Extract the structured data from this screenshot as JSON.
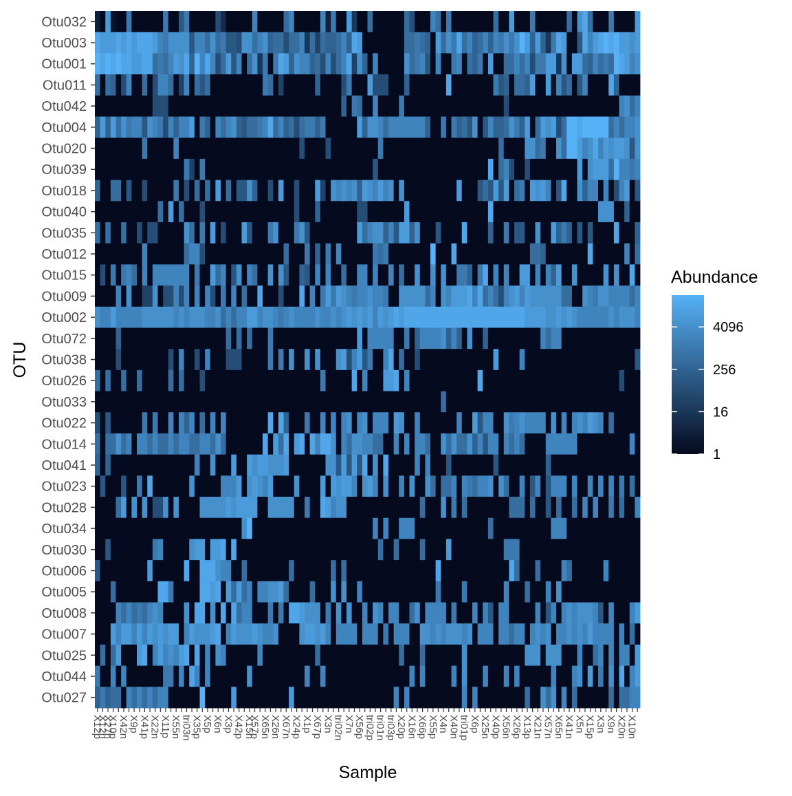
{
  "chart_data": {
    "type": "heatmap",
    "xlabel": "Sample",
    "ylabel": "OTU",
    "legend": {
      "title": "Abundance",
      "placement": "right",
      "scale": "log2",
      "min": 1,
      "max": 32768,
      "ticks": [
        1,
        16,
        256,
        4096
      ],
      "tick_labels": [
        "1",
        "16",
        "256",
        "4096"
      ],
      "color_low": "#050a1e",
      "color_high": "#56b1f7"
    },
    "panel_background": "#000000",
    "grid": false,
    "rows": [
      "Otu032",
      "Otu003",
      "Otu001",
      "Otu011",
      "Otu042",
      "Otu004",
      "Otu020",
      "Otu039",
      "Otu018",
      "Otu040",
      "Otu035",
      "Otu012",
      "Otu015",
      "Otu009",
      "Otu002",
      "Otu072",
      "Otu038",
      "Otu026",
      "Otu033",
      "Otu022",
      "Otu014",
      "Otu041",
      "Otu023",
      "Otu028",
      "Otu034",
      "Otu030",
      "Otu006",
      "Otu005",
      "Otu008",
      "Otu007",
      "Otu025",
      "Otu044",
      "Otu027"
    ],
    "columns": [
      "X12p",
      "X12n",
      "X27n",
      "X10p",
      "X42n",
      "X9p",
      "X41p",
      "X22n",
      "X11p",
      "X55n",
      "tri03n",
      "X35p",
      "X5p",
      "X6n",
      "X3p",
      "X42p",
      "X15n",
      "X57p",
      "X65n",
      "X26n",
      "X67n",
      "X24p",
      "X1p",
      "X67p",
      "X3n",
      "tri02n",
      "X7n",
      "X56p",
      "tri02p",
      "tri01n",
      "tri03p",
      "X20p",
      "X16n",
      "X66p",
      "X55p",
      "X4n",
      "X40n",
      "tri01p",
      "X6p",
      "X25n",
      "X40p",
      "X56n",
      "X26p",
      "X13p",
      "X21n",
      "X57n",
      "X65n",
      "X41n",
      "X5n",
      "X15p",
      "X3n",
      "X9n",
      "X20n",
      "X10n"
    ],
    "column_labels": [
      {
        "index": 0,
        "label": "X12p"
      },
      {
        "index": 1,
        "label": "X12n"
      },
      {
        "index": 2,
        "label": "X27n"
      },
      {
        "index": 3,
        "label": "X10p"
      },
      {
        "index": 5,
        "label": "X42n"
      },
      {
        "index": 7,
        "label": "X9p"
      },
      {
        "index": 9,
        "label": "X41p"
      },
      {
        "index": 11,
        "label": "X22n"
      },
      {
        "index": 13,
        "label": "X11p"
      },
      {
        "index": 15,
        "label": "X55n"
      },
      {
        "index": 17,
        "label": "tri03n"
      },
      {
        "index": 19,
        "label": "X35p"
      },
      {
        "index": 21,
        "label": "X5p"
      },
      {
        "index": 23,
        "label": "X6n"
      },
      {
        "index": 25,
        "label": "X3p"
      },
      {
        "index": 27,
        "label": "X42p"
      },
      {
        "index": 29,
        "label": "X15n"
      },
      {
        "index": 30,
        "label": "X57p"
      },
      {
        "index": 32,
        "label": "X65n"
      },
      {
        "index": 34,
        "label": "X26n"
      },
      {
        "index": 36,
        "label": "X67n"
      },
      {
        "index": 38,
        "label": "X24p"
      },
      {
        "index": 40,
        "label": "X1p"
      },
      {
        "index": 42,
        "label": "X67p"
      },
      {
        "index": 44,
        "label": "X3n"
      },
      {
        "index": 46,
        "label": "tri02n"
      },
      {
        "index": 48,
        "label": "X7n"
      },
      {
        "index": 50,
        "label": "X56p"
      },
      {
        "index": 52,
        "label": "tri02p"
      },
      {
        "index": 54,
        "label": "tri01n"
      },
      {
        "index": 56,
        "label": "tri03p"
      },
      {
        "index": 58,
        "label": "X20p"
      },
      {
        "index": 60,
        "label": "X16n"
      },
      {
        "index": 62,
        "label": "X66p"
      },
      {
        "index": 64,
        "label": "X55p"
      },
      {
        "index": 66,
        "label": "X4n"
      },
      {
        "index": 68,
        "label": "X40n"
      },
      {
        "index": 70,
        "label": "tri01p"
      },
      {
        "index": 72,
        "label": "X6p"
      },
      {
        "index": 74,
        "label": "X25n"
      },
      {
        "index": 76,
        "label": "X40p"
      },
      {
        "index": 78,
        "label": "X56n"
      },
      {
        "index": 80,
        "label": "X26p"
      },
      {
        "index": 82,
        "label": "X13p"
      },
      {
        "index": 84,
        "label": "X21n"
      },
      {
        "index": 86,
        "label": "X57n"
      },
      {
        "index": 88,
        "label": "X65n"
      },
      {
        "index": 90,
        "label": "X41n"
      },
      {
        "index": 92,
        "label": "X5n"
      },
      {
        "index": 94,
        "label": "X15p"
      },
      {
        "index": 96,
        "label": "X3n"
      },
      {
        "index": 98,
        "label": "X9n"
      },
      {
        "index": 100,
        "label": "X20n"
      },
      {
        "index": 102,
        "label": "X10n"
      }
    ],
    "n_columns": 104,
    "values_log2": [
      "20d100a000000a007a000006300000b000009b00000b2a00d400900000096000b90a00000000900d000a00000090ce9000a0000d6000b0000",
      "edddededeeedbacccc7bb9c9a776cc9bc899699b4959889b8ed0000000099a980d9cae9b89b8bacacfd8d84aed007ebdefefddcdcddcdeeedfff",
      "fefefeeddee9a9bdce8fbeb69d7b09c4a0aed8cbb896b69be5c80b00000c9ab70b00ab098a0d0099b9b6aadd4c0dd98b9a9fedbcacbadbdeeefffe",
      "909806b00906bb905b09790000000000a905000000800006a000d66600080000000e00000000a780998d00d1b7907b0000e8000000000000000",
      "0000000000066600000000000000000000000000000000080a900b0000a00000000000000000006000000000000000000000bc9b000900706000",
      "8d8d9cabb7cba6b8bbd0a80b9bc8799abe9b8969aa8a000000d8ccb9bbbbbbb800a0a897c07b889ca8d09dcd69ffefffff9b9bbcdbcdbcdbdcce",
      "000000000a00000b00000000000000000000000600006000000000a000000000000000000000090000cc9a00c9ffdbcebdcddc7c00b7dcbe06c9",
      "00000000000000000a50a000000000000000000000000000000007000000000000000000000e09b6006000000000d0cddd9fbbabbc9b9070cdcb",
      "800990700600000a0609090d09077c80060d006000d50cbcbc8dcbdbc0c0000000000d000797d7d09a0dcdb07e00c8bb0b06bd0700c00bcc80707",
      "00000000000090d09000600000000000000000600080000000660000000d000000000000000e00000000000000000000ccc008000000000008ca",
      "90900900606600000c90a0d06000d7000ac000ac7000000000d9bcc8b7dd8c00070000e0000800a07700c00d8a807070000e000800000000000008",
      "000000000b00000009bb60000000000000009000a080a0b000000a9a00000000f000e0000000000000099800000000e000000b09b000000000000",
      "060a0ab90b0bbbbbbb0a00d9b07c0b900c0c700870b0b00900bb0b00b0900c00c0c00aa80ae0b0b00dd0b0b8d00c00000c0c00e0b9000c0d8000",
      "0000b0c0055c066b6b0b0b60a0b0900e0006000e0b0adadcbabbcbba00ccccc9b0cbdddebe9b96bcdbdcccccc9900cbaccbbbb9b9b9b90cbd9a",
      "cbbdbbbbbccccccbcbcccbbc9b9bbddbccbabcbbbbcbbcbcdcdcdbdcdedeeeeeeeeeeeeeeeeeeeeeeeddddccdcdcbbbbbbcbcccbbbbbbcbbbbbb",
      "000080000000000000000000090909000a0000000000000000d0bbbbb00a08bbbbc8b80c0080000000000b9bb0000000000000000000000800700",
      "0000600000000060b0060b00066600000a0a0c00c0c000cd6bd7a00be0900600000000000000d0000b000000000000000000000700000000000",
      "9090090090000090900060000000000000000000000a00000e0b000dde0b0000000000000e000000000000000000000000006000000000000",
      "0000000000000000000000000000000000000000000000000000000000000000009000000000000000000000000000000000000000000",
      "607000000a0a00b0b8b090b0b00000000e0e8000a00b0b0bc0bc0bbb0dc00b0000000b00d7bb00cabcbbbb0c0b0bcbdcb090000080000000",
      "9099c9b0bb9b99b9bb99bb9c90000000e0d9e0de0ebeec0b9ccbb9900b0b0bb900c9c99c8b7bb0b9b90000bbbbbb0000000000b0000b09990",
      "8080000000000000000b00c000d00dcddcccd0000000cc7d7d7e0c0e00000b0b000700000000700000000080000000000000000000070",
      "07000700a0e0000000c00000bbbd0cdcbd0000c0000d0dcddb0cdb0c00b0c00c9099b0ba9bbc0c900b07b07bbb0b00b0b0b0a090000c0",
      "00009d0c0c066c0c0000cccccdcdddd00ccccc00a00edbcc000000000000009000c0a090000000099909007090090b0b00a0900bc",
      "0000000000000000000000000000cf00000000000000000000000b0b00bbb00000000000000900000000000bbb0000000000000000000000",
      "00700000000ab00000cdd0dde0e0000000000000000000000000009009000090000d0000000000aaa000000000000000000000000000",
      "7000000000d000000e00eeecbb009000000009000000090900000000000000000e0000000000000e900090000b9000000b000000000000",
      "000900000000eea00000eede0d9d9b0bbccd900009000c0c00b00000000000000a0000a0000000b0009000b0c0000000000000000000",
      "0000b9b9a9bcb0000c0ee0c0e0e9bb000a0a0eedccc0a0c0c00b0cb0bb009c0bbbb0a000b0b70bb00000b07b0bcbcccb70b000bd070",
      "000dbddbdbdcdcdd0bdcccde0bdcccdcbbc0000cddcdb0bbbb0bbb0a0bbb00ccbcbcccbc0bbb0bb9bb0bcbc0bbcbcbdbbbb0b090cdcdcc",
      "0909d000de0bdbcbde0e0b0cb000000b00000000009000000000000000900090000000c00000000000ccc0ccc000b009b0b0bb0d0bc",
      "a00b0b0000000aa0b0eb0b0000000c0000000000b00b0000000000000000b0b00000b0c000b000b0b000000b000bc0d0a0c0e0bd",
      "8a8990b9b9b9bb000000f00000d0000000000d0000000000000000000b0b0000000000b0b000000000900c9c0b090000009099bbb0a0"
    ]
  }
}
